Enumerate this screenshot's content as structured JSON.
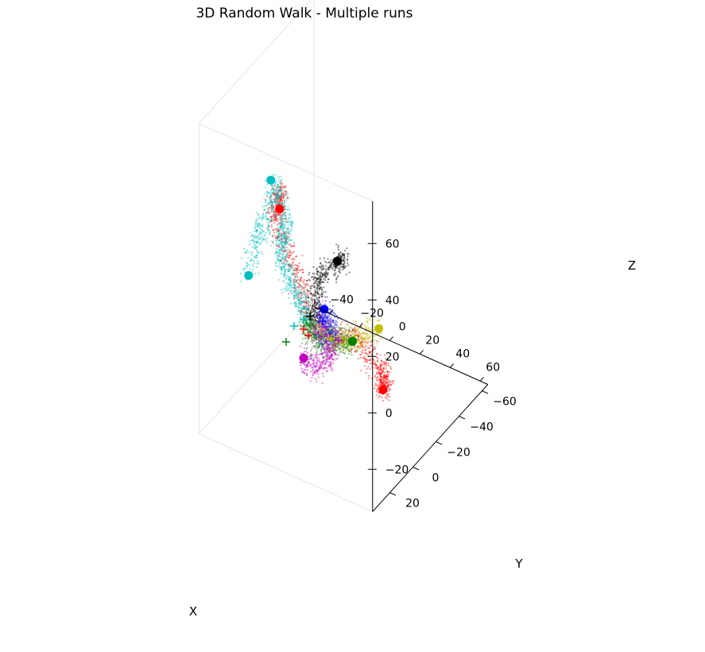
{
  "chart_data": {
    "type": "scatter",
    "projection": "3d",
    "title": "3D Random Walk - Multiple runs",
    "xlabel": "X",
    "ylabel": "Y",
    "zlabel": "Z",
    "xlim": [
      -50,
      65
    ],
    "ylim": [
      -65,
      35
    ],
    "zlim": [
      -35,
      75
    ],
    "xticks": [
      "−40",
      "−20",
      "0",
      "20",
      "40",
      "60"
    ],
    "yticks": [
      "−60",
      "−40",
      "−20",
      "0",
      "20"
    ],
    "zticks": [
      "−20",
      "0",
      "20",
      "40",
      "60"
    ],
    "grid": false,
    "legend": "none",
    "start_marker": "+",
    "end_marker": "filled circle",
    "series": [
      {
        "color": "#ff0000",
        "start": [
          0,
          0,
          0
        ],
        "end": [
          -8,
          20,
          48
        ],
        "waypoints": [
          [
            0,
            0,
            0
          ],
          [
            -2,
            5,
            10
          ],
          [
            -4,
            10,
            22
          ],
          [
            -10,
            15,
            35
          ],
          [
            -12,
            20,
            45
          ],
          [
            -8,
            20,
            55
          ],
          [
            -8,
            20,
            48
          ]
        ]
      },
      {
        "color": "#ff0000",
        "start": [
          0,
          0,
          0
        ],
        "end": [
          30,
          -20,
          -25
        ],
        "waypoints": [
          [
            0,
            0,
            0
          ],
          [
            10,
            -5,
            -5
          ],
          [
            22,
            -8,
            -2
          ],
          [
            30,
            -10,
            -10
          ],
          [
            35,
            -15,
            -15
          ],
          [
            32,
            -18,
            -22
          ],
          [
            30,
            -20,
            -25
          ]
        ]
      },
      {
        "color": "#00bfbf",
        "start": [
          0,
          0,
          0
        ],
        "end": [
          -40,
          5,
          10
        ],
        "waypoints": [
          [
            0,
            0,
            0
          ],
          [
            -8,
            5,
            10
          ],
          [
            -15,
            10,
            25
          ],
          [
            -8,
            15,
            40
          ],
          [
            -12,
            18,
            55
          ],
          [
            -25,
            10,
            35
          ],
          [
            -35,
            5,
            25
          ],
          [
            -40,
            5,
            10
          ]
        ]
      },
      {
        "color": "#00bfbf",
        "start": [
          0,
          0,
          0
        ],
        "end": [
          -10,
          25,
          60
        ],
        "waypoints": [
          [
            0,
            0,
            0
          ],
          [
            -8,
            5,
            10
          ],
          [
            -15,
            10,
            25
          ],
          [
            -8,
            15,
            40
          ],
          [
            -10,
            25,
            60
          ]
        ]
      },
      {
        "color": "#000000",
        "start": [
          0,
          0,
          0
        ],
        "end": [
          15,
          0,
          26
        ],
        "waypoints": [
          [
            0,
            0,
            0
          ],
          [
            3,
            2,
            8
          ],
          [
            5,
            5,
            18
          ],
          [
            12,
            8,
            25
          ],
          [
            20,
            2,
            28
          ],
          [
            15,
            0,
            26
          ]
        ]
      },
      {
        "color": "#0000ff",
        "start": [
          0,
          0,
          0
        ],
        "end": [
          10,
          5,
          10
        ],
        "waypoints": [
          [
            0,
            0,
            0
          ],
          [
            8,
            -2,
            -5
          ],
          [
            12,
            0,
            0
          ],
          [
            10,
            3,
            6
          ],
          [
            10,
            5,
            10
          ]
        ]
      },
      {
        "color": "#008000",
        "start": [
          0,
          0,
          0
        ],
        "end": [
          25,
          0,
          0
        ],
        "waypoints": [
          [
            0,
            0,
            0
          ],
          [
            -10,
            -5,
            -5
          ],
          [
            -5,
            -8,
            -12
          ],
          [
            8,
            -4,
            -6
          ],
          [
            18,
            -2,
            -3
          ],
          [
            25,
            0,
            0
          ]
        ]
      },
      {
        "color": "#bfbf00",
        "start": [
          0,
          0,
          0
        ],
        "end": [
          50,
          10,
          15
        ],
        "waypoints": [
          [
            0,
            0,
            0
          ],
          [
            18,
            5,
            0
          ],
          [
            30,
            8,
            6
          ],
          [
            40,
            10,
            10
          ],
          [
            50,
            10,
            15
          ]
        ]
      },
      {
        "color": "#bf00bf",
        "start": [
          0,
          0,
          0
        ],
        "end": [
          -15,
          -10,
          -20
        ],
        "waypoints": [
          [
            0,
            0,
            0
          ],
          [
            5,
            -8,
            -10
          ],
          [
            0,
            -12,
            -18
          ],
          [
            -8,
            -10,
            -22
          ],
          [
            -15,
            -10,
            -20
          ]
        ]
      }
    ]
  }
}
